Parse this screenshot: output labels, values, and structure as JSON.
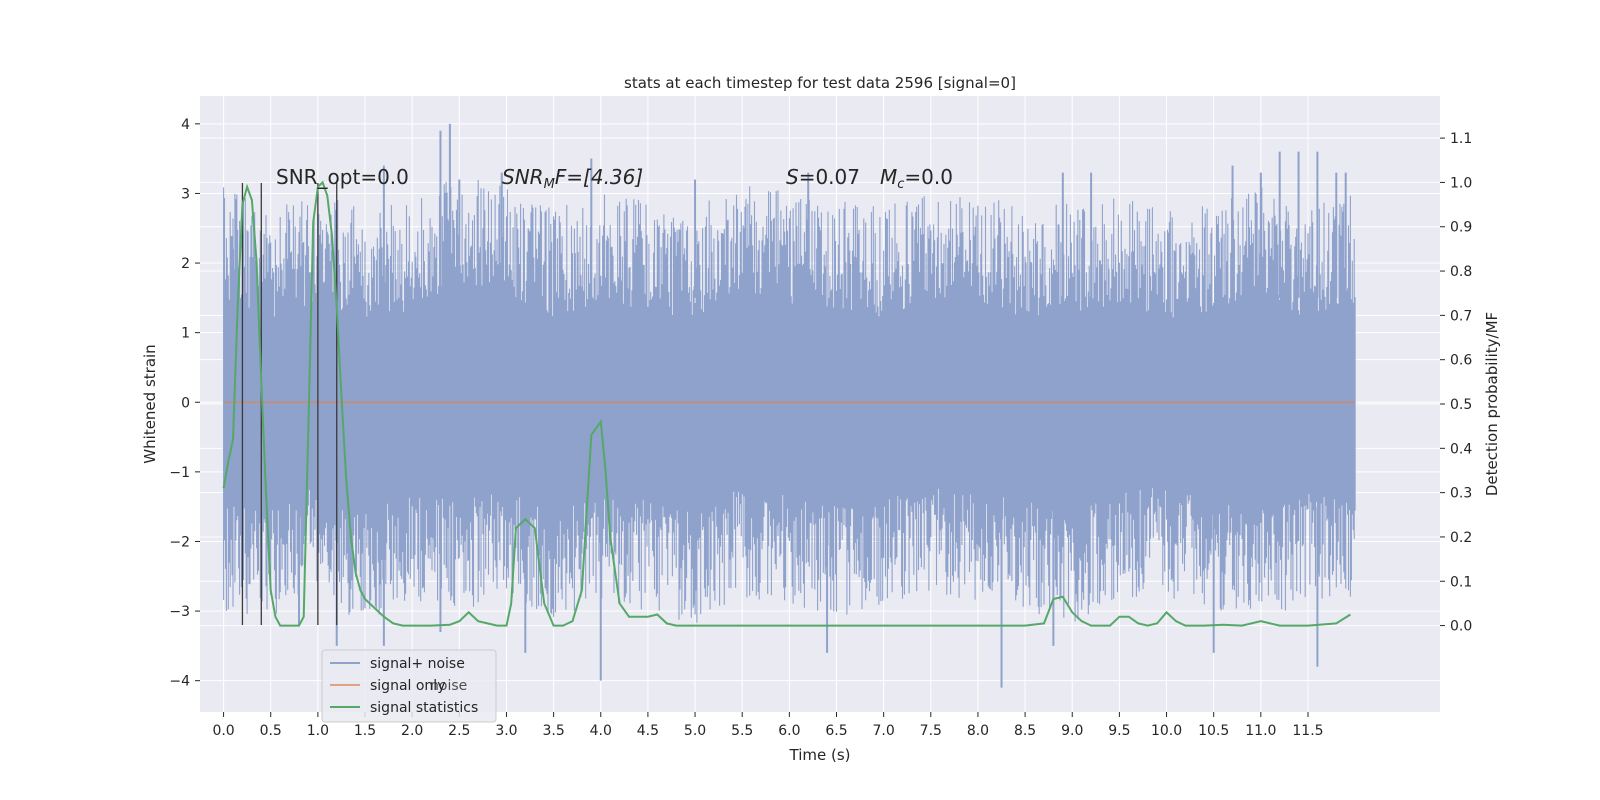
{
  "chart_data": {
    "type": "line",
    "title": "stats at each timestep for test data 2596 [signal=0]",
    "xlabel": "Time (s)",
    "ylabel": "Whitened strain",
    "y2label": "Detection probability/MF",
    "xlim": [
      -0.25,
      12.9
    ],
    "ylim": [
      -4.45,
      4.4
    ],
    "y2lim": [
      -0.195,
      1.195
    ],
    "xticks": [
      "0.0",
      "0.5",
      "1.0",
      "1.5",
      "2.0",
      "2.5",
      "3.0",
      "3.5",
      "4.0",
      "4.5",
      "5.0",
      "5.5",
      "6.0",
      "6.5",
      "7.0",
      "7.5",
      "8.0",
      "8.5",
      "9.0",
      "9.5",
      "10.0",
      "10.5",
      "11.0",
      "11.5"
    ],
    "xtick_values": [
      0.0,
      0.5,
      1.0,
      1.5,
      2.0,
      2.5,
      3.0,
      3.5,
      4.0,
      4.5,
      5.0,
      5.5,
      6.0,
      6.5,
      7.0,
      7.5,
      8.0,
      8.5,
      9.0,
      9.5,
      10.0,
      10.5,
      11.0,
      11.5
    ],
    "yticks": [
      "−4",
      "−3",
      "−2",
      "−1",
      "0",
      "1",
      "2",
      "3",
      "4"
    ],
    "ytick_values": [
      -4,
      -3,
      -2,
      -1,
      0,
      1,
      2,
      3,
      4
    ],
    "y2ticks": [
      "0.0",
      "0.1",
      "0.2",
      "0.3",
      "0.4",
      "0.5",
      "0.6",
      "0.7",
      "0.8",
      "0.9",
      "1.0",
      "1.1"
    ],
    "y2tick_values": [
      0.0,
      0.1,
      0.2,
      0.3,
      0.4,
      0.5,
      0.6,
      0.7,
      0.8,
      0.9,
      1.0,
      1.1
    ],
    "grid": true,
    "legend_position": "lower-left",
    "legend": [
      "signal+ noise",
      "signal only",
      "signal statistics"
    ],
    "colors": {
      "noise": "#8ea2cc",
      "signal": "#dd8452",
      "stats": "#55a868",
      "vlines": "#3a3a3a",
      "background": "#eaeaf2",
      "grid": "#ffffff"
    },
    "noise_series": {
      "name": "signal+ noise",
      "x_range": [
        0.0,
        12.0
      ],
      "band_top_y": [
        2.3,
        2.0,
        2.2,
        2.0,
        2.1,
        2.5,
        2.3,
        2.0,
        2.2,
        2.1,
        2.0,
        2.4,
        2.2,
        2.1,
        2.0,
        2.3,
        2.2,
        2.0,
        2.1,
        2.2,
        2.0,
        2.1,
        2.3,
        2.0,
        2.2
      ],
      "band_bottom_y": [
        -2.2,
        -2.3,
        -2.0,
        -2.4,
        -2.1,
        -2.2,
        -2.0,
        -2.3,
        -2.1,
        -2.2,
        -2.4,
        -2.0,
        -2.1,
        -2.3,
        -2.2,
        -2.0,
        -2.1,
        -2.2,
        -2.4,
        -2.1,
        -2.0,
        -2.2,
        -2.3,
        -2.1,
        -2.2
      ],
      "peaks_up": [
        [
          1.7,
          3.4
        ],
        [
          2.3,
          3.9
        ],
        [
          2.4,
          4.0
        ],
        [
          2.5,
          3.2
        ],
        [
          2.95,
          3.3
        ],
        [
          3.9,
          3.5
        ],
        [
          5.0,
          3.2
        ],
        [
          6.2,
          3.3
        ],
        [
          10.7,
          3.4
        ],
        [
          11.0,
          3.3
        ],
        [
          11.2,
          3.6
        ],
        [
          11.4,
          3.6
        ],
        [
          11.6,
          3.6
        ],
        [
          11.8,
          3.3
        ],
        [
          11.9,
          3.3
        ],
        [
          8.9,
          3.3
        ],
        [
          9.2,
          3.3
        ],
        [
          0.1,
          2.2
        ]
      ],
      "peaks_down": [
        [
          1.2,
          -3.5
        ],
        [
          1.7,
          -3.5
        ],
        [
          2.3,
          -3.3
        ],
        [
          3.2,
          -3.6
        ],
        [
          4.0,
          -4.0
        ],
        [
          6.4,
          -3.6
        ],
        [
          8.25,
          -4.1
        ],
        [
          8.8,
          -3.5
        ],
        [
          10.5,
          -3.6
        ],
        [
          11.6,
          -3.8
        ],
        [
          0.8,
          -3.2
        ]
      ]
    },
    "signal_series": {
      "name": "signal only",
      "x": [
        0.0,
        12.0
      ],
      "y": [
        0.0,
        0.0
      ]
    },
    "stats_series": {
      "name": "signal statistics",
      "x": [
        0.0,
        0.05,
        0.1,
        0.15,
        0.2,
        0.25,
        0.3,
        0.35,
        0.4,
        0.45,
        0.5,
        0.55,
        0.6,
        0.65,
        0.7,
        0.75,
        0.8,
        0.85,
        0.9,
        0.95,
        1.0,
        1.05,
        1.1,
        1.15,
        1.2,
        1.25,
        1.3,
        1.35,
        1.4,
        1.45,
        1.5,
        1.55,
        1.6,
        1.7,
        1.8,
        1.9,
        2.0,
        2.2,
        2.4,
        2.5,
        2.6,
        2.7,
        2.8,
        2.9,
        3.0,
        3.05,
        3.1,
        3.2,
        3.3,
        3.4,
        3.5,
        3.6,
        3.7,
        3.8,
        3.9,
        4.0,
        4.05,
        4.1,
        4.2,
        4.3,
        4.4,
        4.5,
        4.6,
        4.7,
        4.8,
        4.9,
        5.0,
        5.2,
        6.0,
        7.0,
        8.0,
        8.5,
        8.7,
        8.8,
        8.9,
        9.0,
        9.1,
        9.2,
        9.4,
        9.5,
        9.6,
        9.7,
        9.8,
        9.9,
        10.0,
        10.1,
        10.2,
        10.4,
        10.6,
        10.8,
        11.0,
        11.2,
        11.5,
        11.8,
        11.95
      ],
      "y": [
        0.31,
        0.37,
        0.42,
        0.72,
        0.95,
        0.99,
        0.96,
        0.82,
        0.55,
        0.3,
        0.08,
        0.02,
        0.0,
        0.0,
        0.0,
        0.0,
        0.0,
        0.02,
        0.45,
        0.91,
        0.99,
        1.0,
        0.97,
        0.88,
        0.72,
        0.52,
        0.33,
        0.2,
        0.12,
        0.08,
        0.06,
        0.05,
        0.04,
        0.02,
        0.005,
        0.0,
        0.0,
        0.0,
        0.002,
        0.01,
        0.03,
        0.01,
        0.005,
        0.0,
        0.0,
        0.05,
        0.22,
        0.24,
        0.22,
        0.05,
        0.0,
        0.0,
        0.01,
        0.08,
        0.43,
        0.46,
        0.35,
        0.2,
        0.05,
        0.02,
        0.02,
        0.02,
        0.025,
        0.005,
        0.0,
        0.0,
        0.0,
        0.0,
        0.0,
        0.0,
        0.0,
        0.0,
        0.005,
        0.06,
        0.065,
        0.03,
        0.01,
        0.0,
        0.0,
        0.02,
        0.02,
        0.005,
        0.0,
        0.005,
        0.03,
        0.01,
        0.0,
        0.0,
        0.002,
        0.0,
        0.01,
        0.0,
        0.0,
        0.005,
        0.025
      ]
    },
    "vlines_x": [
      0.2,
      0.4,
      1.0,
      1.2
    ],
    "vlines_range_y": [
      -3.2,
      3.15
    ],
    "annotations": {
      "snr_opt": "SNR_opt=0.0",
      "snr_mf_main": "SNR",
      "snr_mf_sub": "M",
      "snr_mf_rest": "F=[4.36]",
      "s_main": "S",
      "s_rest": "=0.07",
      "mc_main": "M",
      "mc_sub": "c",
      "mc_rest": "=0.0"
    },
    "legend_shadow_text": "noise"
  }
}
